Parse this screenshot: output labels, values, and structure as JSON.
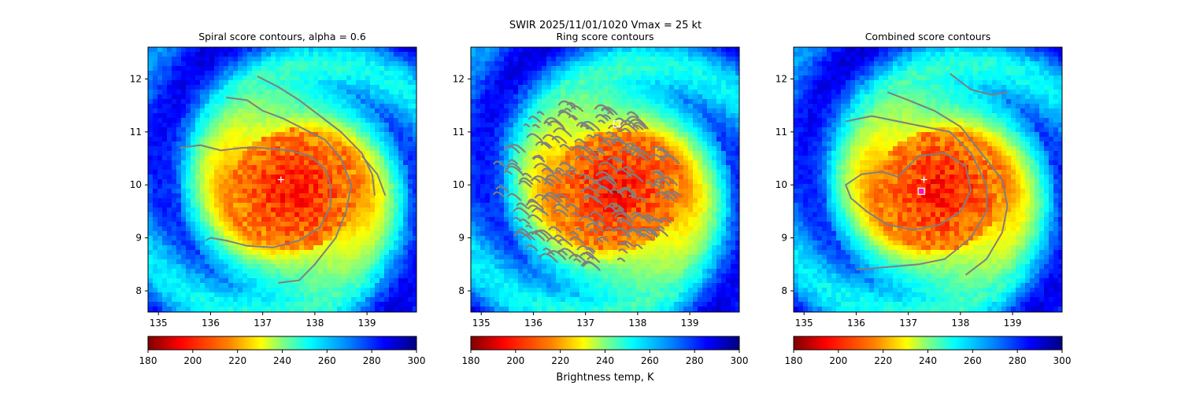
{
  "suptitle": "SWIR  2025/11/01/1020    Vmax = 25 kt",
  "colors": {
    "contour": "#7f7f7f",
    "marker_center": "#ffffff",
    "marker_combined": "#ff00ff",
    "colormap": [
      "#800000",
      "#ff0000",
      "#ff8000",
      "#ffff00",
      "#80ff80",
      "#00ffff",
      "#0080ff",
      "#0000ff",
      "#000080"
    ]
  },
  "chart_data": [
    {
      "type": "heatmap",
      "title": "Spiral score contours, alpha =  0.6",
      "xlabel": "",
      "ylabel": "",
      "xlim": [
        134.8,
        139.95
      ],
      "ylim": [
        7.6,
        12.6
      ],
      "xticks": [
        "135",
        "136",
        "137",
        "138",
        "139"
      ],
      "yticks": [
        "8",
        "9",
        "10",
        "11",
        "12"
      ],
      "color_scale": {
        "min": 180,
        "max": 300,
        "ticks": [
          "180",
          "200",
          "220",
          "240",
          "260",
          "280",
          "300"
        ],
        "colormap": "jet_r",
        "label": ""
      },
      "storm": {
        "center": [
          137.6,
          9.9
        ],
        "cold_core_K": 195,
        "cold_core_radius_deg": 1.2,
        "cloud_shield_radius_deg": 2.2
      },
      "markers": [
        {
          "symbol": "plus",
          "x": 137.35,
          "y": 10.1,
          "color": "white"
        }
      ],
      "contours": [
        [
          [
            135.4,
            10.7
          ],
          [
            135.8,
            10.75
          ],
          [
            136.2,
            10.65
          ],
          [
            136.6,
            10.7
          ],
          [
            137.0,
            10.7
          ],
          [
            137.5,
            10.65
          ],
          [
            137.9,
            10.55
          ],
          [
            138.2,
            10.3
          ],
          [
            138.3,
            10.0
          ],
          [
            138.3,
            9.6
          ],
          [
            138.1,
            9.2
          ],
          [
            137.7,
            8.95
          ],
          [
            137.2,
            8.82
          ],
          [
            136.7,
            8.85
          ],
          [
            136.3,
            8.95
          ],
          [
            136.0,
            9.0
          ],
          [
            135.9,
            8.95
          ]
        ],
        [
          [
            136.3,
            11.65
          ],
          [
            136.7,
            11.6
          ],
          [
            137.0,
            11.4
          ],
          [
            137.4,
            11.25
          ],
          [
            137.8,
            11.05
          ],
          [
            138.2,
            10.85
          ],
          [
            138.5,
            10.5
          ],
          [
            138.7,
            10.0
          ],
          [
            138.6,
            9.5
          ],
          [
            138.4,
            9.0
          ],
          [
            138.0,
            8.5
          ],
          [
            137.7,
            8.2
          ],
          [
            137.3,
            8.15
          ]
        ],
        [
          [
            136.9,
            12.05
          ],
          [
            137.3,
            11.85
          ],
          [
            137.7,
            11.6
          ],
          [
            138.1,
            11.3
          ],
          [
            138.5,
            11.0
          ],
          [
            138.9,
            10.6
          ],
          [
            139.1,
            10.2
          ],
          [
            139.15,
            9.8
          ]
        ],
        [
          [
            138.9,
            10.55
          ],
          [
            139.2,
            10.2
          ],
          [
            139.35,
            9.8
          ]
        ]
      ]
    },
    {
      "type": "heatmap",
      "title": "Ring score contours",
      "xlabel": "",
      "ylabel": "",
      "xlim": [
        134.8,
        139.95
      ],
      "ylim": [
        7.6,
        12.6
      ],
      "xticks": [
        "135",
        "136",
        "137",
        "138",
        "139"
      ],
      "yticks": [
        "8",
        "9",
        "10",
        "11",
        "12"
      ],
      "color_scale": {
        "min": 180,
        "max": 300,
        "ticks": [
          "180",
          "200",
          "220",
          "240",
          "260",
          "280",
          "300"
        ],
        "colormap": "jet_r",
        "label": "Brightness temp, K"
      },
      "storm": {
        "center": [
          137.6,
          9.9
        ],
        "cold_core_K": 195,
        "cold_core_radius_deg": 1.2,
        "cloud_shield_radius_deg": 2.2
      },
      "ring_region": {
        "center": [
          137.0,
          10.0
        ],
        "radius_deg": 1.7
      },
      "markers": [
        {
          "symbol": "square",
          "x": 137.6,
          "y": 11.15,
          "color": "white"
        }
      ],
      "contours": []
    },
    {
      "type": "heatmap",
      "title": "Combined score contours",
      "xlabel": "",
      "ylabel": "",
      "xlim": [
        134.8,
        139.95
      ],
      "ylim": [
        7.6,
        12.6
      ],
      "xticks": [
        "135",
        "136",
        "137",
        "138",
        "139"
      ],
      "yticks": [
        "8",
        "9",
        "10",
        "11",
        "12"
      ],
      "color_scale": {
        "min": 180,
        "max": 300,
        "ticks": [
          "180",
          "200",
          "220",
          "240",
          "260",
          "280",
          "300"
        ],
        "colormap": "jet_r",
        "label": ""
      },
      "storm": {
        "center": [
          137.6,
          9.9
        ],
        "cold_core_K": 195,
        "cold_core_radius_deg": 1.2,
        "cloud_shield_radius_deg": 2.2
      },
      "markers": [
        {
          "symbol": "plus",
          "x": 137.3,
          "y": 10.1,
          "color": "white"
        },
        {
          "symbol": "square",
          "x": 137.25,
          "y": 9.88,
          "color": "white"
        },
        {
          "symbol": "circle",
          "x": 137.25,
          "y": 9.88,
          "color": "magenta"
        }
      ],
      "contours": [
        [
          [
            136.8,
            10.15
          ],
          [
            137.2,
            10.55
          ],
          [
            137.7,
            10.6
          ],
          [
            138.1,
            10.35
          ],
          [
            138.2,
            9.9
          ],
          [
            138.0,
            9.5
          ],
          [
            137.6,
            9.25
          ],
          [
            137.1,
            9.15
          ],
          [
            136.6,
            9.25
          ],
          [
            136.2,
            9.5
          ],
          [
            135.9,
            9.75
          ],
          [
            135.8,
            10.0
          ],
          [
            136.1,
            10.2
          ],
          [
            136.5,
            10.25
          ],
          [
            136.8,
            10.15
          ]
        ],
        [
          [
            135.8,
            11.2
          ],
          [
            136.3,
            11.3
          ],
          [
            136.8,
            11.2
          ],
          [
            137.3,
            11.1
          ],
          [
            137.8,
            11.0
          ],
          [
            138.2,
            10.6
          ],
          [
            138.5,
            10.0
          ],
          [
            138.5,
            9.5
          ],
          [
            138.2,
            9.0
          ],
          [
            137.7,
            8.6
          ],
          [
            137.2,
            8.5
          ],
          [
            136.6,
            8.45
          ],
          [
            136.0,
            8.4
          ]
        ],
        [
          [
            136.6,
            11.75
          ],
          [
            137.0,
            11.6
          ],
          [
            137.5,
            11.4
          ],
          [
            138.0,
            11.1
          ],
          [
            138.4,
            10.6
          ],
          [
            138.8,
            10.1
          ],
          [
            138.9,
            9.6
          ],
          [
            138.8,
            9.1
          ],
          [
            138.5,
            8.6
          ],
          [
            138.1,
            8.3
          ]
        ],
        [
          [
            137.8,
            12.1
          ],
          [
            138.2,
            11.8
          ],
          [
            138.6,
            11.7
          ],
          [
            138.9,
            11.75
          ]
        ]
      ]
    }
  ]
}
